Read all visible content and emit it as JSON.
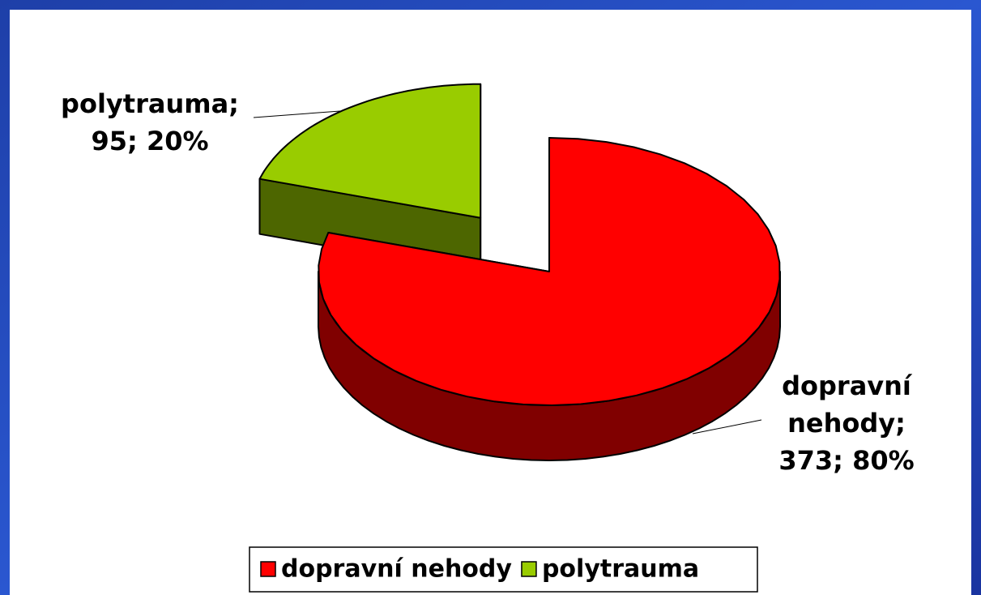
{
  "chart_data": {
    "type": "pie3d",
    "categories": [
      "dopravní nehody",
      "polytrauma"
    ],
    "values": [
      373,
      95
    ],
    "value_labels": [
      "dopravní nehody; 373; 80%",
      "polytrauma; 95; 20%"
    ],
    "colors": [
      "#ff0000",
      "#99cc00"
    ],
    "legend": "bottom"
  }
}
